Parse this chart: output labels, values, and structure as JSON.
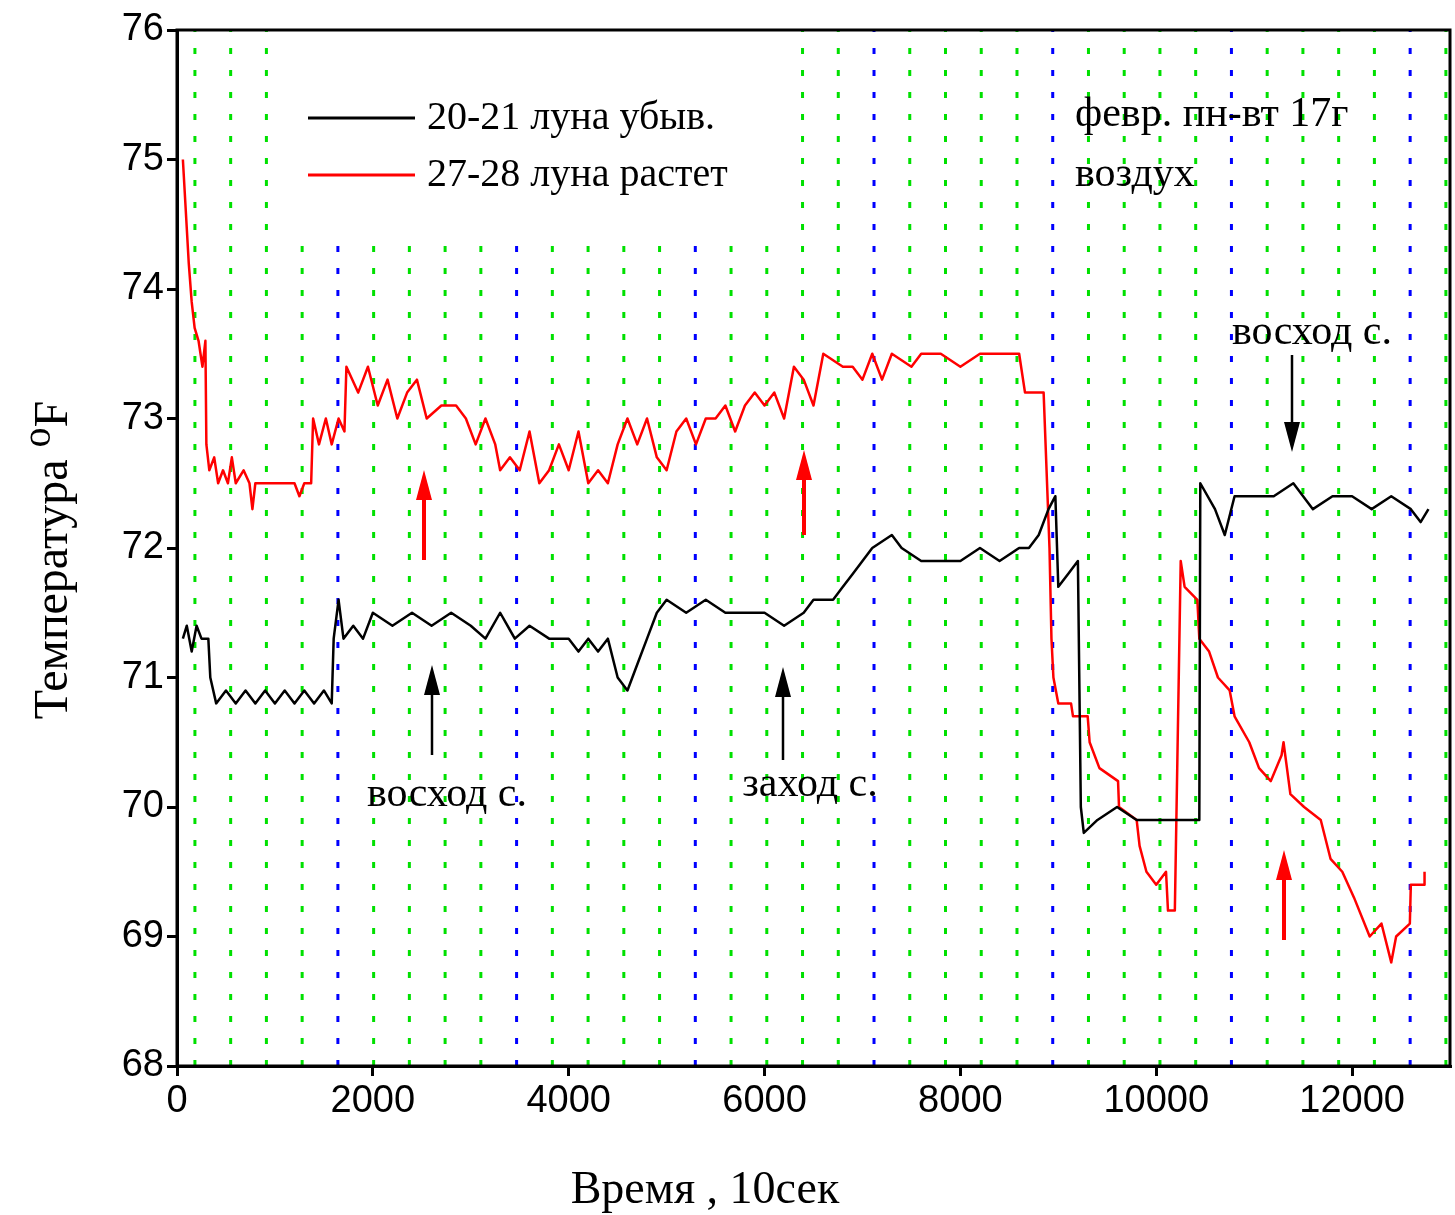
{
  "chart_data": {
    "type": "line",
    "xlabel": "Время , 10сек",
    "ylabel": "Температура  $^{o}$F",
    "xlim": [
      0,
      13000
    ],
    "xticks": [
      0,
      2000,
      4000,
      6000,
      8000,
      10000,
      12000
    ],
    "ylim": [
      68,
      76
    ],
    "yticks": [
      68,
      69,
      70,
      71,
      72,
      73,
      74,
      75,
      76
    ],
    "legend": "top left",
    "line_style": "solid",
    "marker": "none",
    "series": [
      {
        "name": "20-21 луна убыв.",
        "color": "#000000",
        "x": [
          60,
          100,
          150,
          200,
          250,
          320,
          340,
          400,
          500,
          600,
          700,
          800,
          900,
          1000,
          1100,
          1200,
          1300,
          1400,
          1500,
          1580,
          1600,
          1650,
          1700,
          1800,
          1900,
          2000,
          2200,
          2400,
          2600,
          2800,
          3000,
          3150,
          3300,
          3450,
          3600,
          3800,
          4000,
          4100,
          4200,
          4300,
          4400,
          4500,
          4600,
          4700,
          4800,
          4900,
          5000,
          5200,
          5400,
          5600,
          5800,
          6000,
          6200,
          6400,
          6500,
          6700,
          6800,
          6900,
          7000,
          7100,
          7300,
          7400,
          7600,
          8000,
          8200,
          8400,
          8600,
          8700,
          8800,
          8900,
          8970,
          9000,
          9100,
          9200,
          9230,
          9260,
          9400,
          9600,
          9800,
          10000,
          10200,
          10440,
          10450,
          10600,
          10700,
          10800,
          11000,
          11200,
          11400,
          11600,
          11800,
          12000,
          12200,
          12400,
          12600,
          12700,
          12780
        ],
        "values": [
          71.3,
          71.4,
          71.2,
          71.4,
          71.3,
          71.3,
          71.0,
          70.8,
          70.9,
          70.8,
          70.9,
          70.8,
          70.9,
          70.8,
          70.9,
          70.8,
          70.9,
          70.8,
          70.9,
          70.8,
          71.3,
          71.6,
          71.3,
          71.4,
          71.3,
          71.5,
          71.4,
          71.5,
          71.4,
          71.5,
          71.4,
          71.3,
          71.5,
          71.3,
          71.4,
          71.3,
          71.3,
          71.2,
          71.3,
          71.2,
          71.3,
          71.0,
          70.9,
          71.1,
          71.3,
          71.5,
          71.6,
          71.5,
          71.6,
          71.5,
          71.5,
          71.5,
          71.4,
          71.5,
          71.6,
          71.6,
          71.7,
          71.8,
          71.9,
          72.0,
          72.1,
          72.0,
          71.9,
          71.9,
          72.0,
          71.9,
          72.0,
          72.0,
          72.1,
          72.3,
          72.4,
          71.7,
          71.8,
          71.9,
          70.0,
          69.8,
          69.9,
          70.0,
          69.9,
          69.9,
          69.9,
          69.9,
          72.5,
          72.3,
          72.1,
          72.4,
          72.4,
          72.4,
          72.5,
          72.3,
          72.4,
          72.4,
          72.3,
          72.4,
          72.3,
          72.2,
          72.3
        ]
      },
      {
        "name": "27-28 луна растет",
        "color": "#ff0000",
        "x": [
          60,
          90,
          120,
          150,
          180,
          220,
          260,
          290,
          300,
          330,
          380,
          420,
          470,
          520,
          560,
          600,
          680,
          740,
          770,
          800,
          1000,
          1200,
          1250,
          1300,
          1370,
          1390,
          1450,
          1520,
          1580,
          1650,
          1710,
          1730,
          1850,
          1950,
          2050,
          2150,
          2250,
          2350,
          2450,
          2550,
          2700,
          2850,
          2950,
          3050,
          3150,
          3250,
          3300,
          3400,
          3500,
          3600,
          3700,
          3800,
          3900,
          4000,
          4100,
          4200,
          4300,
          4400,
          4500,
          4600,
          4700,
          4800,
          4900,
          5000,
          5100,
          5200,
          5300,
          5400,
          5500,
          5600,
          5700,
          5800,
          5900,
          6000,
          6100,
          6200,
          6300,
          6400,
          6500,
          6600,
          6800,
          6900,
          7000,
          7100,
          7200,
          7300,
          7500,
          7600,
          7800,
          8000,
          8200,
          8400,
          8600,
          8660,
          8850,
          8880,
          8910,
          8930,
          8950,
          9000,
          9130,
          9150,
          9300,
          9320,
          9420,
          9610,
          9620,
          9800,
          9830,
          9900,
          10000,
          10100,
          10120,
          10190,
          10250,
          10290,
          10420,
          10440,
          10540,
          10630,
          10750,
          10800,
          10950,
          11050,
          11170,
          11280,
          11300,
          11370,
          11510,
          11680,
          11780,
          11900,
          12020,
          12180,
          12300,
          12400,
          12450,
          12590,
          12600,
          12735,
          12740
        ],
        "values": [
          75.0,
          74.6,
          74.2,
          73.9,
          73.7,
          73.6,
          73.4,
          73.6,
          72.8,
          72.6,
          72.7,
          72.5,
          72.6,
          72.5,
          72.7,
          72.5,
          72.6,
          72.5,
          72.3,
          72.5,
          72.5,
          72.5,
          72.4,
          72.5,
          72.5,
          73.0,
          72.8,
          73.0,
          72.8,
          73.0,
          72.9,
          73.4,
          73.2,
          73.4,
          73.1,
          73.3,
          73.0,
          73.2,
          73.3,
          73.0,
          73.1,
          73.1,
          73.0,
          72.8,
          73.0,
          72.8,
          72.6,
          72.7,
          72.6,
          72.9,
          72.5,
          72.6,
          72.8,
          72.6,
          72.9,
          72.5,
          72.6,
          72.5,
          72.8,
          73.0,
          72.8,
          73.0,
          72.7,
          72.6,
          72.9,
          73.0,
          72.8,
          73.0,
          73.0,
          73.1,
          72.9,
          73.1,
          73.2,
          73.1,
          73.2,
          73.0,
          73.4,
          73.3,
          73.1,
          73.5,
          73.4,
          73.4,
          73.3,
          73.5,
          73.3,
          73.5,
          73.4,
          73.5,
          73.5,
          73.4,
          73.5,
          73.5,
          73.5,
          73.2,
          73.2,
          72.6,
          72.0,
          71.3,
          71.0,
          70.8,
          70.8,
          70.7,
          70.7,
          70.5,
          70.3,
          70.2,
          70.0,
          69.9,
          69.7,
          69.5,
          69.4,
          69.5,
          69.2,
          69.2,
          71.9,
          71.7,
          71.6,
          71.3,
          71.2,
          71.0,
          70.9,
          70.7,
          70.5,
          70.3,
          70.2,
          70.4,
          70.5,
          70.1,
          70.0,
          69.9,
          69.6,
          69.5,
          69.3,
          69.0,
          69.1,
          68.8,
          69.0,
          69.1,
          69.4,
          69.4,
          69.5
        ]
      }
    ],
    "ref_lines": [
      {
        "axis": "x",
        "value": 183,
        "color": "#00e000",
        "line_style": "dotted"
      },
      {
        "axis": "x",
        "value": 548,
        "color": "#00e000",
        "line_style": "dotted"
      },
      {
        "axis": "x",
        "value": 913,
        "color": "#00e000",
        "line_style": "dotted"
      },
      {
        "axis": "x",
        "value": 1278,
        "color": "#00e000",
        "line_style": "dotted"
      },
      {
        "axis": "x",
        "value": 1643,
        "color": "#0000ff",
        "line_style": "dotted"
      },
      {
        "axis": "x",
        "value": 2008,
        "color": "#00e000",
        "line_style": "dotted"
      },
      {
        "axis": "x",
        "value": 2373,
        "color": "#00e000",
        "line_style": "dotted"
      },
      {
        "axis": "x",
        "value": 2738,
        "color": "#00e000",
        "line_style": "dotted"
      },
      {
        "axis": "x",
        "value": 3103,
        "color": "#00e000",
        "line_style": "dotted"
      },
      {
        "axis": "x",
        "value": 3468,
        "color": "#0000ff",
        "line_style": "dotted"
      },
      {
        "axis": "x",
        "value": 3833,
        "color": "#00e000",
        "line_style": "dotted"
      },
      {
        "axis": "x",
        "value": 4198,
        "color": "#00e000",
        "line_style": "dotted"
      },
      {
        "axis": "x",
        "value": 4563,
        "color": "#00e000",
        "line_style": "dotted"
      },
      {
        "axis": "x",
        "value": 4928,
        "color": "#00e000",
        "line_style": "dotted"
      },
      {
        "axis": "x",
        "value": 5293,
        "color": "#0000ff",
        "line_style": "dotted"
      },
      {
        "axis": "x",
        "value": 5658,
        "color": "#00e000",
        "line_style": "dotted"
      },
      {
        "axis": "x",
        "value": 6023,
        "color": "#00e000",
        "line_style": "dotted"
      },
      {
        "axis": "x",
        "value": 6388,
        "color": "#00e000",
        "line_style": "dotted"
      },
      {
        "axis": "x",
        "value": 6753,
        "color": "#00e000",
        "line_style": "dotted"
      },
      {
        "axis": "x",
        "value": 7118,
        "color": "#0000ff",
        "line_style": "dotted"
      },
      {
        "axis": "x",
        "value": 7483,
        "color": "#00e000",
        "line_style": "dotted"
      },
      {
        "axis": "x",
        "value": 7848,
        "color": "#00e000",
        "line_style": "dotted"
      },
      {
        "axis": "x",
        "value": 8213,
        "color": "#00e000",
        "line_style": "dotted"
      },
      {
        "axis": "x",
        "value": 8578,
        "color": "#00e000",
        "line_style": "dotted"
      },
      {
        "axis": "x",
        "value": 8943,
        "color": "#0000ff",
        "line_style": "dotted"
      },
      {
        "axis": "x",
        "value": 9308,
        "color": "#00e000",
        "line_style": "dotted"
      },
      {
        "axis": "x",
        "value": 9673,
        "color": "#00e000",
        "line_style": "dotted"
      },
      {
        "axis": "x",
        "value": 10038,
        "color": "#00e000",
        "line_style": "dotted"
      },
      {
        "axis": "x",
        "value": 10403,
        "color": "#00e000",
        "line_style": "dotted"
      },
      {
        "axis": "x",
        "value": 10768,
        "color": "#0000ff",
        "line_style": "dotted"
      },
      {
        "axis": "x",
        "value": 11133,
        "color": "#00e000",
        "line_style": "dotted"
      },
      {
        "axis": "x",
        "value": 11498,
        "color": "#00e000",
        "line_style": "dotted"
      },
      {
        "axis": "x",
        "value": 11863,
        "color": "#00e000",
        "line_style": "dotted"
      },
      {
        "axis": "x",
        "value": 12228,
        "color": "#00e000",
        "line_style": "dotted"
      },
      {
        "axis": "x",
        "value": 12593,
        "color": "#0000ff",
        "line_style": "dotted"
      },
      {
        "axis": "x",
        "value": 12958,
        "color": "#00e000",
        "line_style": "dotted"
      }
    ],
    "annotations": [
      "февр. пн-вт 17г",
      "воздух",
      "восход с.",
      "заход с.",
      "восход с."
    ]
  }
}
